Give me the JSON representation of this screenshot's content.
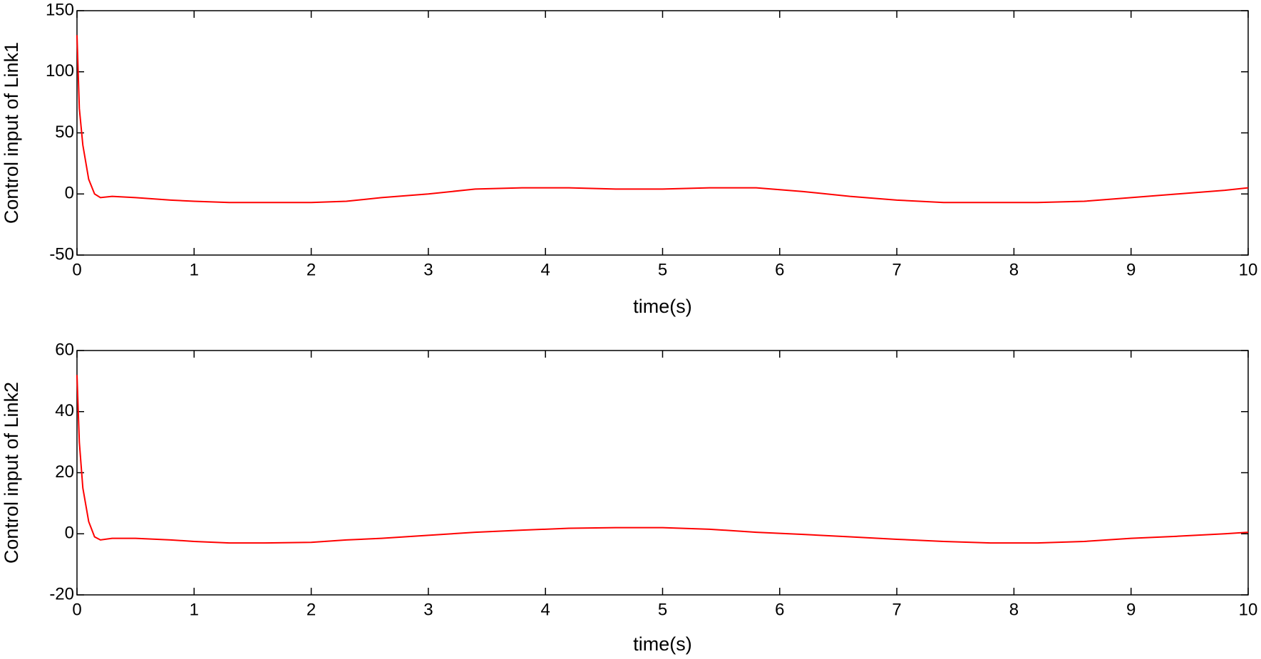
{
  "chart_data": [
    {
      "type": "line",
      "xlabel": "time(s)",
      "ylabel": "Control input of Link1",
      "x": [
        0,
        0.02,
        0.05,
        0.1,
        0.15,
        0.2,
        0.3,
        0.5,
        0.8,
        1,
        1.3,
        1.6,
        2,
        2.3,
        2.6,
        3,
        3.4,
        3.8,
        4.2,
        4.6,
        5,
        5.4,
        5.8,
        6.2,
        6.6,
        7,
        7.4,
        7.8,
        8.2,
        8.6,
        9,
        9.4,
        9.8,
        10
      ],
      "series": [
        {
          "color": "#ff0000",
          "values": [
            130,
            70,
            40,
            12,
            0,
            -3,
            -2,
            -3,
            -5,
            -6,
            -7,
            -7,
            -7,
            -6,
            -3,
            0,
            4,
            5,
            5,
            4,
            4,
            5,
            5,
            2,
            -2,
            -5,
            -7,
            -7,
            -7,
            -6,
            -3,
            0,
            3,
            5
          ]
        }
      ],
      "xlim": [
        0,
        10
      ],
      "xticks": [
        0,
        1,
        2,
        3,
        4,
        5,
        6,
        7,
        8,
        9,
        10
      ],
      "ylim": [
        -50,
        150
      ],
      "yticks": [
        -50,
        0,
        50,
        100,
        150
      ]
    },
    {
      "type": "line",
      "xlabel": "time(s)",
      "ylabel": "Control input of Link2",
      "x": [
        0,
        0.02,
        0.05,
        0.1,
        0.15,
        0.2,
        0.3,
        0.5,
        0.8,
        1,
        1.3,
        1.6,
        2,
        2.3,
        2.6,
        3,
        3.4,
        3.8,
        4.2,
        4.6,
        5,
        5.4,
        5.8,
        6.2,
        6.6,
        7,
        7.4,
        7.8,
        8.2,
        8.6,
        9,
        9.4,
        9.8,
        10
      ],
      "series": [
        {
          "color": "#ff0000",
          "values": [
            52,
            30,
            15,
            4,
            -1,
            -2,
            -1.5,
            -1.5,
            -2,
            -2.5,
            -3,
            -3,
            -2.8,
            -2,
            -1.5,
            -0.5,
            0.5,
            1.2,
            1.8,
            2,
            2,
            1.5,
            0.5,
            -0.2,
            -1,
            -1.8,
            -2.5,
            -3,
            -3,
            -2.5,
            -1.5,
            -0.8,
            0,
            0.5
          ]
        }
      ],
      "xlim": [
        0,
        10
      ],
      "xticks": [
        0,
        1,
        2,
        3,
        4,
        5,
        6,
        7,
        8,
        9,
        10
      ],
      "ylim": [
        -20,
        60
      ],
      "yticks": [
        -20,
        0,
        20,
        40,
        60
      ]
    }
  ]
}
